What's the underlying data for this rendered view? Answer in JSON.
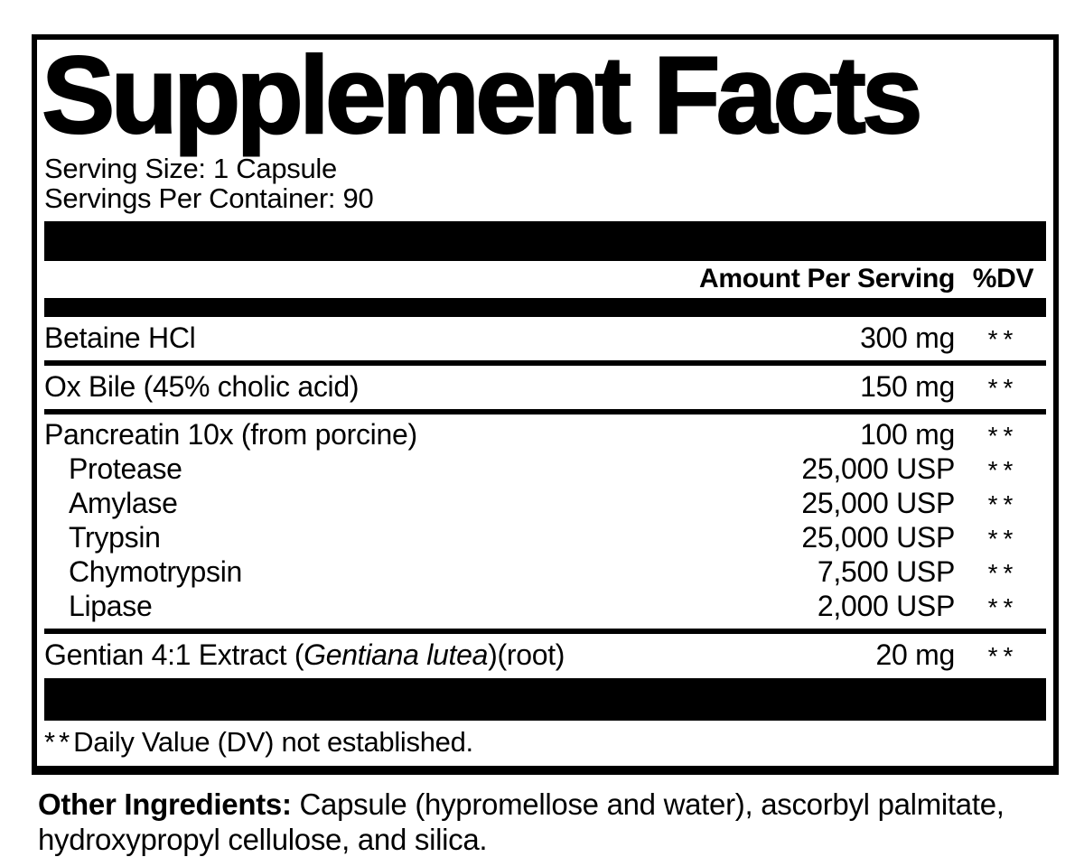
{
  "panel": {
    "title": "Supplement Facts",
    "serving_size": "Serving Size: 1 Capsule",
    "servings_per_container": "Servings Per Container: 90",
    "columns": {
      "amount": "Amount Per Serving",
      "dv": "%DV"
    },
    "rows": [
      {
        "name": "Betaine HCl",
        "amount": "300 mg",
        "dv": "**"
      },
      {
        "name": "Ox Bile (45% cholic acid)",
        "amount": "150 mg",
        "dv": "**"
      },
      {
        "name": "Pancreatin 10x (from porcine)",
        "amount": "100 mg",
        "dv": "**"
      },
      {
        "name": "Protease",
        "amount": "25,000 USP",
        "dv": "**",
        "indent": true
      },
      {
        "name": "Amylase",
        "amount": "25,000 USP",
        "dv": "**",
        "indent": true
      },
      {
        "name": "Trypsin",
        "amount": "25,000 USP",
        "dv": "**",
        "indent": true
      },
      {
        "name": "Chymotrypsin",
        "amount": "7,500 USP",
        "dv": "**",
        "indent": true
      },
      {
        "name": "Lipase",
        "amount": "2,000 USP",
        "dv": "**",
        "indent": true
      },
      {
        "name_prefix": "Gentian 4:1 Extract (",
        "name_italic": "Gentiana lutea",
        "name_suffix": ")(root)",
        "amount": "20 mg",
        "dv": "**"
      }
    ],
    "footnote": {
      "asterisks": "**",
      "text": "Daily Value (DV) not established."
    }
  },
  "other_ingredients": {
    "label": "Other Ingredients:",
    "text": " Capsule (hypromellose and water), ascorbyl palmitate, hydroxypropyl cellulose, and silica."
  },
  "colors": {
    "ink": "#000000",
    "background": "#ffffff"
  }
}
